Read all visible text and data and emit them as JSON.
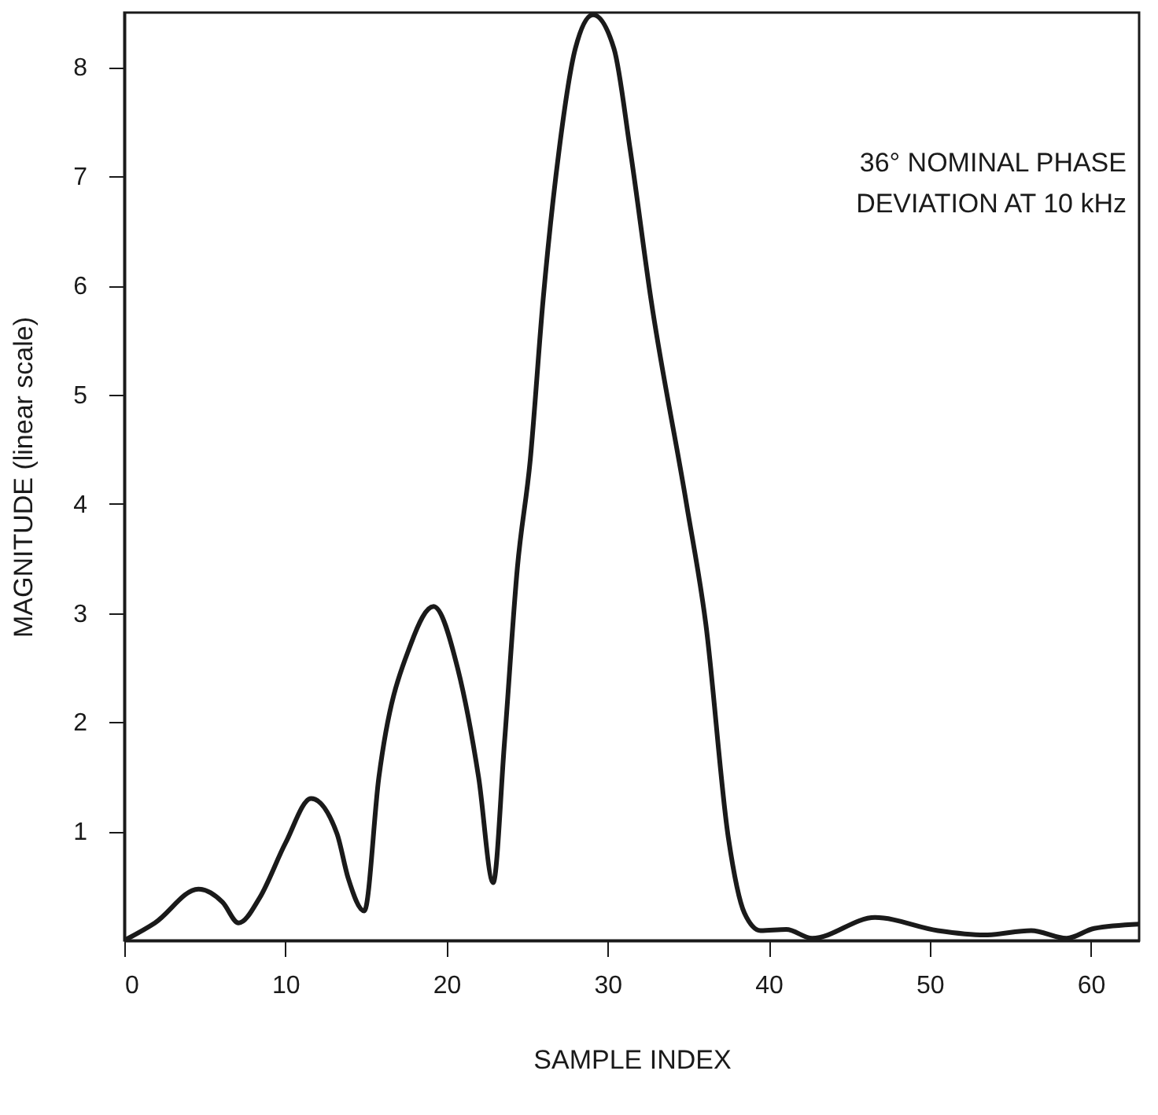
{
  "chart_data": {
    "type": "line",
    "xlabel": "SAMPLE INDEX",
    "ylabel": "MAGNITUDE (linear scale)",
    "annotations": [
      "36° NOMINAL PHASE\nDEVIATION AT 10 kHz"
    ],
    "x": [
      0,
      1.9,
      4.6,
      6.1,
      7.1,
      8.4,
      10,
      11.6,
      13.2,
      13.9,
      14.9,
      15.8,
      17.8,
      19.2,
      20.7,
      22,
      22.9,
      23.6,
      24.4,
      25.2,
      26,
      27,
      28,
      29.1,
      30.4,
      31.4,
      32.7,
      34.9,
      36.1,
      37.5,
      38.5,
      39.5,
      41.1,
      42.7,
      46.6,
      50.5,
      53.4,
      56.3,
      58.5,
      60.2,
      63
    ],
    "series": [
      {
        "color": "#1a1a1a",
        "values": [
          0,
          0.16,
          0.47,
          0.35,
          0.16,
          0.39,
          0.89,
          1.3,
          0.98,
          0.57,
          0.27,
          1.49,
          2.72,
          3.06,
          2.49,
          1.49,
          0.53,
          1.81,
          3.41,
          4.4,
          5.87,
          7.25,
          8.17,
          8.48,
          8.17,
          7.25,
          5.87,
          4,
          2.9,
          0.94,
          0.25,
          0.09,
          0.1,
          0.02,
          0.21,
          0.09,
          0.05,
          0.09,
          0.02,
          0.11,
          0.15
        ]
      }
    ],
    "xlim": [
      0,
      63
    ],
    "ylim": [
      0,
      8.5
    ],
    "xticks": [
      0,
      10,
      20,
      30,
      40,
      50,
      60
    ],
    "yticks": [
      1,
      2,
      3,
      4,
      5,
      6,
      7,
      8
    ],
    "grid": false,
    "marker": "none",
    "line_style": "solid"
  }
}
